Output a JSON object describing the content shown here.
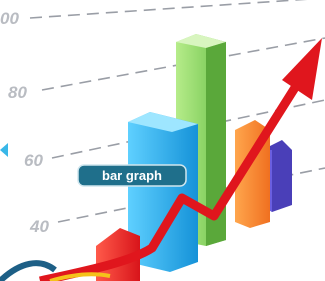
{
  "axis_labels": [
    "00",
    "80",
    "60",
    "40"
  ],
  "badge": "bar graph"
}
